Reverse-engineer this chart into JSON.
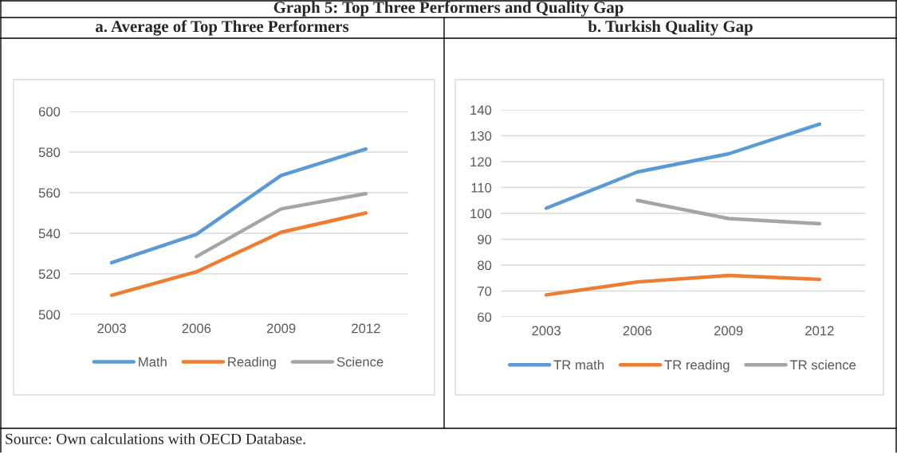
{
  "chart_data": [
    {
      "type": "line",
      "title": "Graph 5: Top Three Performers and Quality Gap",
      "subtitle": "a. Average of Top Three Performers",
      "categories": [
        "2003",
        "2006",
        "2009",
        "2012"
      ],
      "series": [
        {
          "name": "Math",
          "color": "#5b9bd5",
          "values": [
            525.5,
            539.5,
            568.5,
            581.5
          ]
        },
        {
          "name": "Reading",
          "color": "#ed7d31",
          "values": [
            509.5,
            521,
            540.5,
            550
          ]
        },
        {
          "name": "Science",
          "color": "#a5a5a5",
          "values": [
            null,
            528.5,
            552,
            559.5
          ]
        }
      ],
      "ylim": [
        500,
        600
      ],
      "yticks": [
        500,
        520,
        540,
        560,
        580,
        600
      ],
      "grid": "y",
      "legend": "bottom",
      "marker": "none",
      "line_style": "solid",
      "annotations": [
        "Source: Own calculations with OECD Database."
      ]
    },
    {
      "type": "line",
      "subtitle": "b. Turkish Quality Gap",
      "categories": [
        "2003",
        "2006",
        "2009",
        "2012"
      ],
      "series": [
        {
          "name": "TR math",
          "color": "#5b9bd5",
          "values": [
            102,
            116,
            123,
            134.5
          ]
        },
        {
          "name": "TR reading",
          "color": "#ed7d31",
          "values": [
            68.5,
            73.5,
            76,
            74.5
          ]
        },
        {
          "name": "TR science",
          "color": "#a5a5a5",
          "values": [
            null,
            105,
            98,
            96
          ]
        }
      ],
      "ylim": [
        60,
        140
      ],
      "yticks": [
        60,
        70,
        80,
        90,
        100,
        110,
        120,
        130,
        140
      ],
      "grid": "y",
      "legend": "bottom",
      "marker": "none",
      "line_style": "solid"
    }
  ]
}
